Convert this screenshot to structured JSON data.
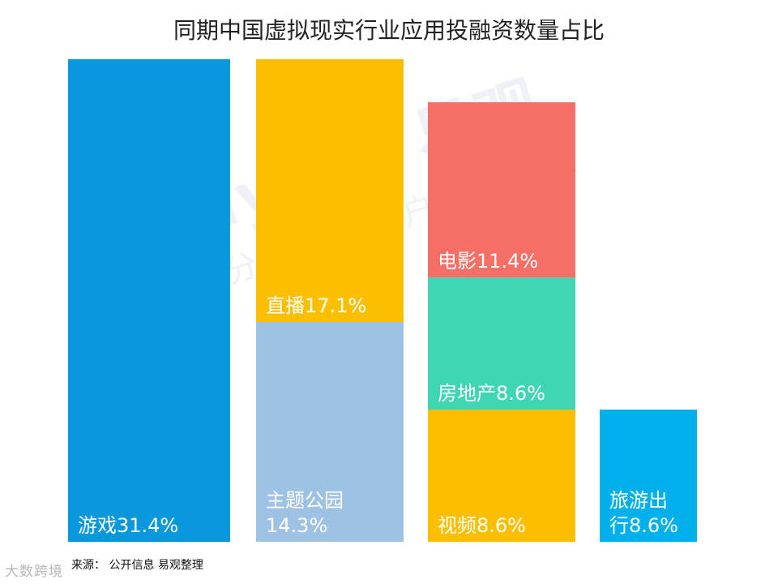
{
  "title": "同期中国虚拟现实行业应用投融资数量占比",
  "source_text": "来源： 公开信息 易观整理",
  "watermark": {
    "main": "Analysys 易观",
    "sub": "数据分析驱动用户资产增长"
  },
  "logo_text": "大数跨境",
  "chart_data": {
    "type": "bar",
    "stacked": true,
    "unit": "%",
    "columns": [
      {
        "segments": [
          {
            "label": "游戏31.4%",
            "category": "游戏",
            "value": 31.4,
            "color": "#0a98dc"
          }
        ]
      },
      {
        "segments": [
          {
            "label": "主题公园\n14.3%",
            "category": "主题公园",
            "value": 14.3,
            "color": "#9ec2e4"
          },
          {
            "label": "直播17.1%",
            "category": "直播",
            "value": 17.1,
            "color": "#fbbf00"
          }
        ]
      },
      {
        "segments": [
          {
            "label": "视频8.6%",
            "category": "视频",
            "value": 8.6,
            "color": "#fbbf00"
          },
          {
            "label": "房地产8.6%",
            "category": "房地产",
            "value": 8.6,
            "color": "#3fd6b4"
          },
          {
            "label": "电影11.4%",
            "category": "电影",
            "value": 11.4,
            "color": "#f47067"
          }
        ]
      },
      {
        "segments": [
          {
            "label": "旅游出\n行8.6%",
            "category": "旅游出行",
            "value": 8.6,
            "color": "#00b0ec"
          }
        ]
      }
    ],
    "column_total": 31.4
  }
}
